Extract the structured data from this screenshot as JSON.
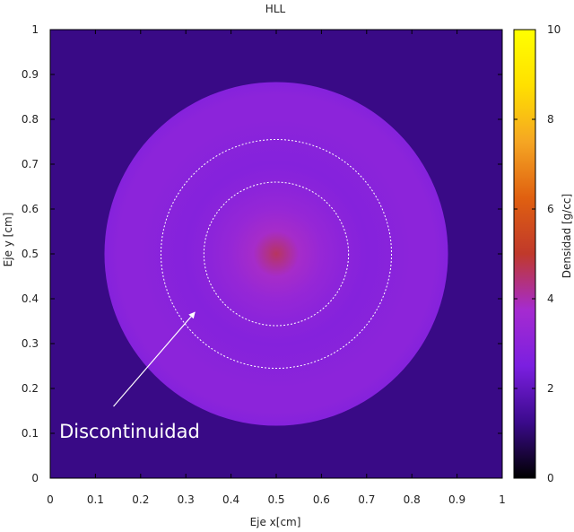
{
  "chart_data": {
    "type": "heatmap",
    "title": "HLL",
    "xlabel": "Eje x[cm]",
    "ylabel": "Eje y [cm]",
    "xlim": [
      0,
      1
    ],
    "ylim": [
      0,
      1
    ],
    "x_ticks": [
      "0",
      "0.1",
      "0.2",
      "0.3",
      "0.4",
      "0.5",
      "0.6",
      "0.7",
      "0.8",
      "0.9",
      "1"
    ],
    "y_ticks": [
      "0",
      "0.1",
      "0.2",
      "0.3",
      "0.4",
      "0.5",
      "0.6",
      "0.7",
      "0.8",
      "0.9",
      "1"
    ],
    "colorbar": {
      "label": "Densidad [g/cc]",
      "range": [
        0,
        10
      ],
      "ticks": [
        "0",
        "2",
        "4",
        "6",
        "8",
        "10"
      ],
      "colormap": [
        "#000000",
        "#3b0a8c",
        "#7b1fe0",
        "#a52bd0",
        "#c0392b",
        "#e06010",
        "#f5a623",
        "#ffe000",
        "#ffff00"
      ]
    },
    "background_value": 1.2,
    "field": {
      "center": [
        0.5,
        0.5
      ],
      "outer_radius": 0.38,
      "radial_profile": [
        {
          "r": 0.0,
          "value": 4.6
        },
        {
          "r": 0.05,
          "value": 3.8
        },
        {
          "r": 0.1,
          "value": 3.3
        },
        {
          "r": 0.15,
          "value": 3.0
        },
        {
          "r": 0.2,
          "value": 2.8
        },
        {
          "r": 0.25,
          "value": 2.9
        },
        {
          "r": 0.3,
          "value": 3.0
        },
        {
          "r": 0.35,
          "value": 3.0
        },
        {
          "r": 0.38,
          "value": 2.8
        }
      ]
    },
    "dashed_circles": [
      {
        "center": [
          0.5,
          0.5
        ],
        "rx": 0.16,
        "ry": 0.16
      },
      {
        "center": [
          0.5,
          0.5
        ],
        "rx": 0.255,
        "ry": 0.255
      }
    ],
    "annotation": {
      "text": "Discontinuidad",
      "text_at": [
        0.02,
        0.09
      ],
      "arrow_from": [
        0.14,
        0.16
      ],
      "arrow_to": [
        0.32,
        0.37
      ]
    }
  }
}
